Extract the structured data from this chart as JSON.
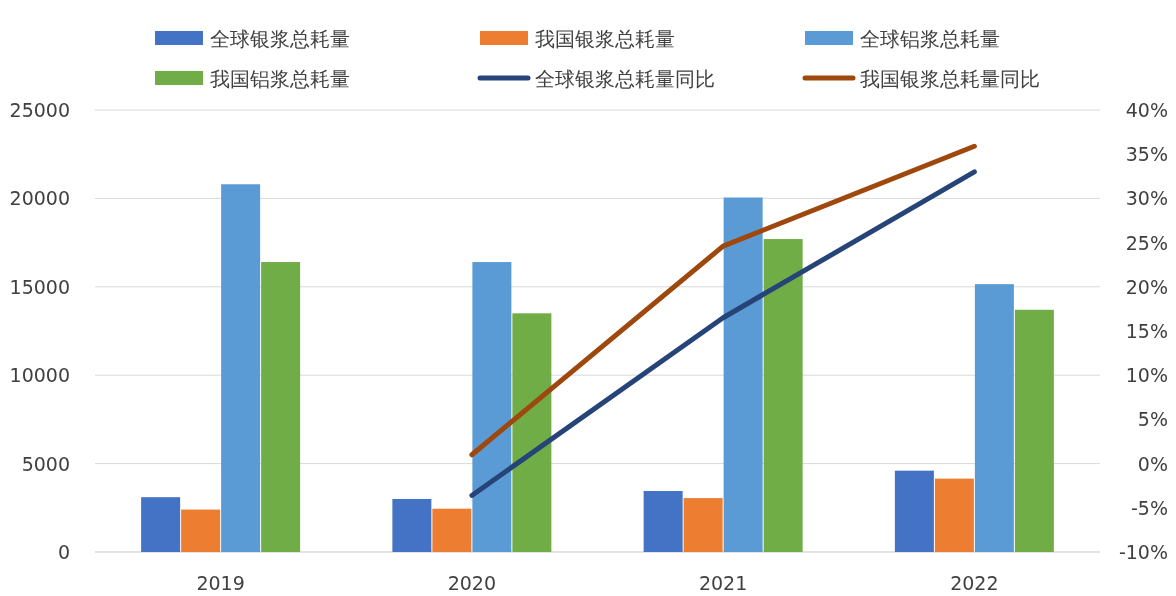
{
  "chart_data": {
    "type": "bar",
    "categories": [
      "2019",
      "2020",
      "2021",
      "2022"
    ],
    "series": [
      {
        "name": "全球银浆总耗量",
        "color": "#4472c4",
        "values": [
          3100,
          3000,
          3450,
          4600
        ]
      },
      {
        "name": "我国银浆总耗量",
        "color": "#ed7d31",
        "values": [
          2400,
          2450,
          3050,
          4150
        ]
      },
      {
        "name": "全球铝浆总耗量",
        "color": "#5b9bd5",
        "values": [
          20800,
          16400,
          20050,
          15150
        ]
      },
      {
        "name": "我国铝浆总耗量",
        "color": "#70ad47",
        "values": [
          16400,
          13500,
          17700,
          13700
        ]
      },
      {
        "name": "全球银浆总耗量同比",
        "type": "line",
        "axis": "y2",
        "color": "#264478",
        "values": [
          null,
          -3.6,
          16.5,
          33.0
        ]
      },
      {
        "name": "我国银浆总耗量同比",
        "type": "line",
        "axis": "y2",
        "color": "#9e480e",
        "values": [
          null,
          1.0,
          24.6,
          35.9
        ]
      }
    ],
    "ylim": [
      0,
      25000
    ],
    "yticks": [
      0,
      5000,
      10000,
      15000,
      20000,
      25000
    ],
    "y2lim": [
      -10,
      40
    ],
    "y2ticks": [
      {
        "value": -10,
        "label": "-10%"
      },
      {
        "value": -5,
        "label": "-5%"
      },
      {
        "value": 0,
        "label": "0%"
      },
      {
        "value": 5,
        "label": "5%"
      },
      {
        "value": 10,
        "label": "10%"
      },
      {
        "value": 15,
        "label": "15%"
      },
      {
        "value": 20,
        "label": "20%"
      },
      {
        "value": 25,
        "label": "25%"
      },
      {
        "value": 30,
        "label": "30%"
      },
      {
        "value": 35,
        "label": "35%"
      },
      {
        "value": 40,
        "label": "40%"
      }
    ],
    "grid": "y",
    "legend": "top"
  }
}
